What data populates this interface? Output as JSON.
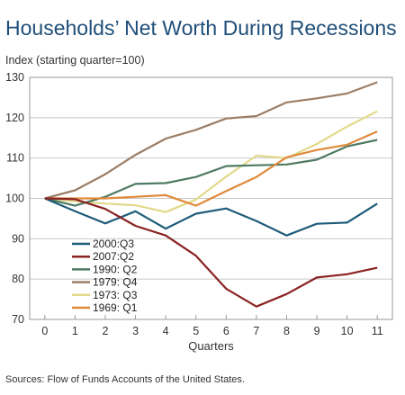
{
  "chart_data": {
    "type": "line",
    "title": "Households’ Net Worth During Recessions",
    "ylabel": "Index (starting quarter=100)",
    "xlabel": "Quarters",
    "source": "Sources: Flow of Funds Accounts of the United States.",
    "x": [
      0,
      1,
      2,
      3,
      4,
      5,
      6,
      7,
      8,
      9,
      10,
      11
    ],
    "xlim": [
      -0.5,
      11.5
    ],
    "ylim": [
      70,
      130
    ],
    "yticks": [
      70,
      80,
      90,
      100,
      110,
      120,
      130
    ],
    "grid": "horizontal",
    "legend": "bottom-left",
    "series": [
      {
        "name": "2000:Q3",
        "color": "#1f5c7a",
        "values": [
          100,
          96.8,
          93.8,
          96.8,
          92.5,
          96.2,
          97.5,
          94.4,
          90.8,
          93.7,
          94.0,
          98.7
        ]
      },
      {
        "name": "2007:Q2",
        "color": "#8b2323",
        "values": [
          100,
          99.8,
          97.4,
          93.2,
          90.8,
          85.8,
          77.6,
          73.2,
          76.3,
          80.4,
          81.2,
          82.8
        ]
      },
      {
        "name": "1990: Q2",
        "color": "#4f7a63",
        "values": [
          100,
          98.2,
          100.4,
          103.6,
          103.8,
          105.3,
          108.0,
          108.2,
          108.4,
          109.6,
          112.9,
          114.5
        ]
      },
      {
        "name": "1979: Q4",
        "color": "#9c7e66",
        "values": [
          100,
          102.0,
          106.0,
          110.8,
          114.8,
          117.0,
          119.8,
          120.4,
          123.8,
          124.8,
          126.0,
          128.8
        ]
      },
      {
        "name": "1973: Q3",
        "color": "#e2d98a",
        "values": [
          100,
          99.3,
          98.7,
          98.3,
          96.6,
          99.7,
          105.4,
          110.6,
          110.0,
          113.5,
          117.8,
          121.6
        ]
      },
      {
        "name": "1969: Q1",
        "color": "#e08a3c",
        "values": [
          100,
          100.0,
          100.0,
          100.4,
          100.8,
          98.2,
          101.8,
          105.3,
          110.2,
          112.0,
          113.3,
          116.6
        ]
      }
    ]
  }
}
